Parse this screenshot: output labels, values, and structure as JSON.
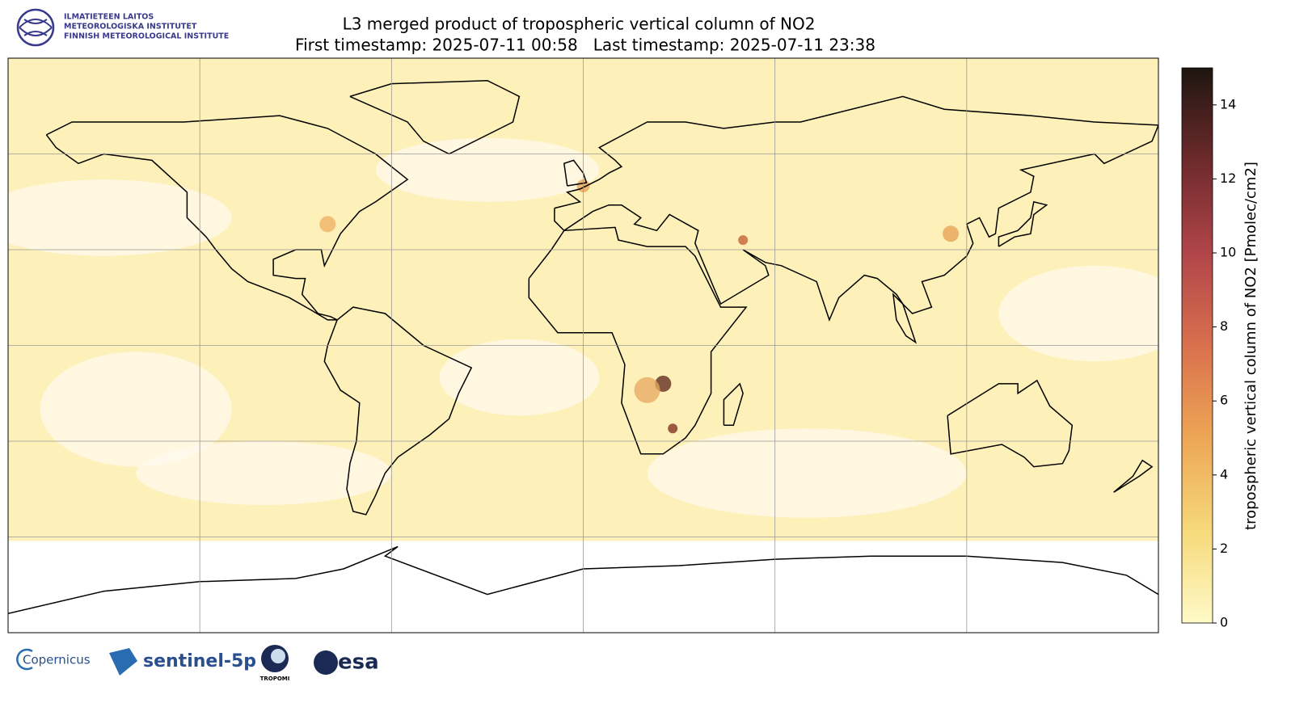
{
  "header": {
    "institute": [
      "ILMATIETEEN LAITOS",
      "METEOROLOGISKA INSTITUTET",
      "FINNISH METEOROLOGICAL INSTITUTE"
    ],
    "title": "L3 merged product of tropospheric vertical column of NO2",
    "subtitle": "First timestamp: 2025-07-11 00:58   Last timestamp: 2025-07-11 23:38"
  },
  "map": {
    "lonlim": [
      -180,
      180
    ],
    "latlim": [
      -90,
      90
    ],
    "lon_lines": [
      -120,
      -60,
      0,
      60,
      120
    ],
    "lat_lines": [
      60,
      30,
      0,
      -30,
      -60
    ]
  },
  "colorbar": {
    "label": "tropospheric vertical column of NO2 [Pmolec/cm2]",
    "vlim": [
      0,
      15
    ],
    "ticks": [
      0,
      2,
      4,
      6,
      8,
      10,
      12,
      14
    ],
    "colors": [
      "#fffac8",
      "#f6d97a",
      "#eda655",
      "#d9704e",
      "#b0454a",
      "#6e2a2c",
      "#1e1610"
    ]
  },
  "footer": {
    "logos": [
      "Copernicus",
      "sentinel-5p",
      "TROPOMI",
      "esa"
    ]
  }
}
